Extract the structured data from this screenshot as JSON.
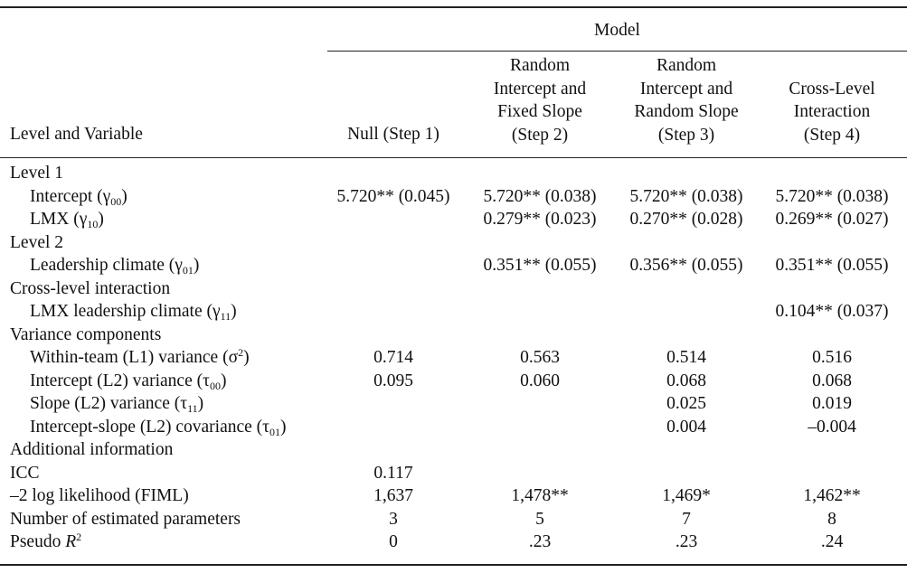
{
  "header": {
    "model_label": "Model",
    "stub_label": "Level and Variable",
    "col1": "Null (Step 1)",
    "col2": [
      "Random",
      "Intercept and",
      "Fixed Slope",
      "(Step 2)"
    ],
    "col3": [
      "Random",
      "Intercept and",
      "Random Slope",
      "(Step 3)"
    ],
    "col4": [
      "Cross-Level",
      "Interaction",
      "(Step 4)"
    ]
  },
  "rows": [
    {
      "label": "Level 1",
      "indent": false,
      "vals": [
        "",
        "",
        "",
        ""
      ]
    },
    {
      "label": "Intercept (γ",
      "sub": "00",
      "tail": ")",
      "indent": true,
      "vals": [
        "5.720** (0.045)",
        "5.720** (0.038)",
        "5.720** (0.038)",
        "5.720** (0.038)"
      ]
    },
    {
      "label": "LMX (γ",
      "sub": "10",
      "tail": ")",
      "indent": true,
      "vals": [
        "",
        "0.279** (0.023)",
        "0.270** (0.028)",
        "0.269** (0.027)"
      ]
    },
    {
      "label": "Level 2",
      "indent": false,
      "vals": [
        "",
        "",
        "",
        ""
      ]
    },
    {
      "label": "Leadership climate (γ",
      "sub": "01",
      "tail": ")",
      "indent": true,
      "vals": [
        "",
        "0.351** (0.055)",
        "0.356** (0.055)",
        "0.351** (0.055)"
      ]
    },
    {
      "label": "Cross-level interaction",
      "indent": false,
      "vals": [
        "",
        "",
        "",
        ""
      ]
    },
    {
      "label": "LMX leadership climate (γ",
      "sub": "11",
      "tail": ")",
      "indent": true,
      "vals": [
        "",
        "",
        "",
        "0.104** (0.037)"
      ]
    },
    {
      "label": "Variance components",
      "indent": false,
      "vals": [
        "",
        "",
        "",
        ""
      ]
    },
    {
      "label": "Within-team (L1) variance (σ",
      "sup": "2",
      "tail": ")",
      "indent": true,
      "vals": [
        "0.714",
        "0.563",
        "0.514",
        "0.516"
      ]
    },
    {
      "label": "Intercept (L2) variance (τ",
      "sub": "00",
      "tail": ")",
      "indent": true,
      "vals": [
        "0.095",
        "0.060",
        "0.068",
        "0.068"
      ]
    },
    {
      "label": "Slope (L2) variance (τ",
      "sub": "11",
      "tail": ")",
      "indent": true,
      "vals": [
        "",
        "",
        "0.025",
        "0.019"
      ]
    },
    {
      "label": "Intercept-slope (L2) covariance (τ",
      "sub": "01",
      "tail": ")",
      "indent": true,
      "vals": [
        "",
        "",
        "0.004",
        "–0.004"
      ]
    },
    {
      "label": "Additional information",
      "indent": false,
      "vals": [
        "",
        "",
        "",
        ""
      ]
    },
    {
      "label": "ICC",
      "indent": false,
      "vals": [
        "0.117",
        "",
        "",
        ""
      ]
    },
    {
      "label": "–2 log likelihood (FIML)",
      "indent": false,
      "vals": [
        "1,637",
        "1,478**",
        "1,469*",
        "1,462**"
      ]
    },
    {
      "label": "Number of estimated parameters",
      "indent": false,
      "vals": [
        "3",
        "5",
        "7",
        "8"
      ]
    },
    {
      "label": "Pseudo ",
      "italic_tail": "R",
      "sup": "2",
      "indent": false,
      "vals": [
        "0",
        ".23",
        ".23",
        ".24"
      ]
    }
  ]
}
